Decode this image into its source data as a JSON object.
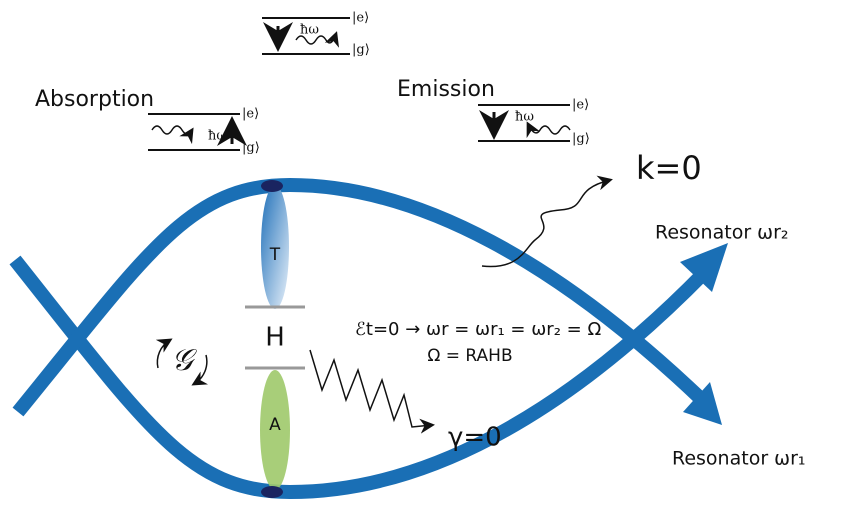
{
  "top_transition": {
    "upper": "|e⟩",
    "lower": "|g⟩",
    "photon": "ħω"
  },
  "absorption": {
    "title": "Absorption",
    "upper": "|e⟩",
    "lower": "|g⟩",
    "photon": "ħω"
  },
  "emission": {
    "title": "Emission",
    "upper": "|e⟩",
    "lower": "|g⟩",
    "photon": "ħω"
  },
  "wave_vector": "k=0",
  "resonators": [
    "Resonator ωr₂",
    "Resonator ωr₁"
  ],
  "molecule": {
    "top": "T",
    "middle": "H",
    "bottom": "A",
    "rotation": "𝒢"
  },
  "equations": [
    "ℰt=0 → ωr = ωr₁ = ωr₂ = Ω",
    "Ω = RAHB"
  ],
  "decay": "γ=0"
}
